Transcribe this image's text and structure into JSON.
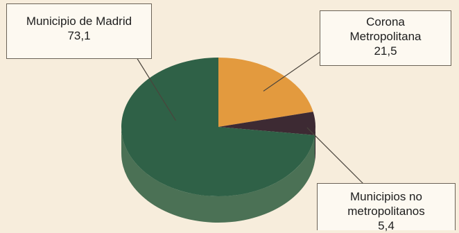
{
  "chart_data": {
    "type": "pie",
    "title": "",
    "slices": [
      {
        "label": "Municipio de Madrid",
        "value": 73.1,
        "value_text": "73,1",
        "color": "#2f6147",
        "side_color": "#4b7155"
      },
      {
        "label": "Corona\nMetropolitana",
        "value": 21.5,
        "value_text": "21,5",
        "color": "#e39a3e",
        "side_color": "#b57a33"
      },
      {
        "label": "Municipios no\nmetropolitanos",
        "value": 5.4,
        "value_text": "5,4",
        "color": "#3d2a33",
        "side_color": "#2c2126"
      }
    ],
    "style": "3d-pie",
    "legend": "none"
  },
  "colors": {
    "background": "#f7eddc",
    "callout_fill": "#fdf9f1",
    "callout_border": "#6a6256",
    "leader_line": "#4a443c"
  }
}
